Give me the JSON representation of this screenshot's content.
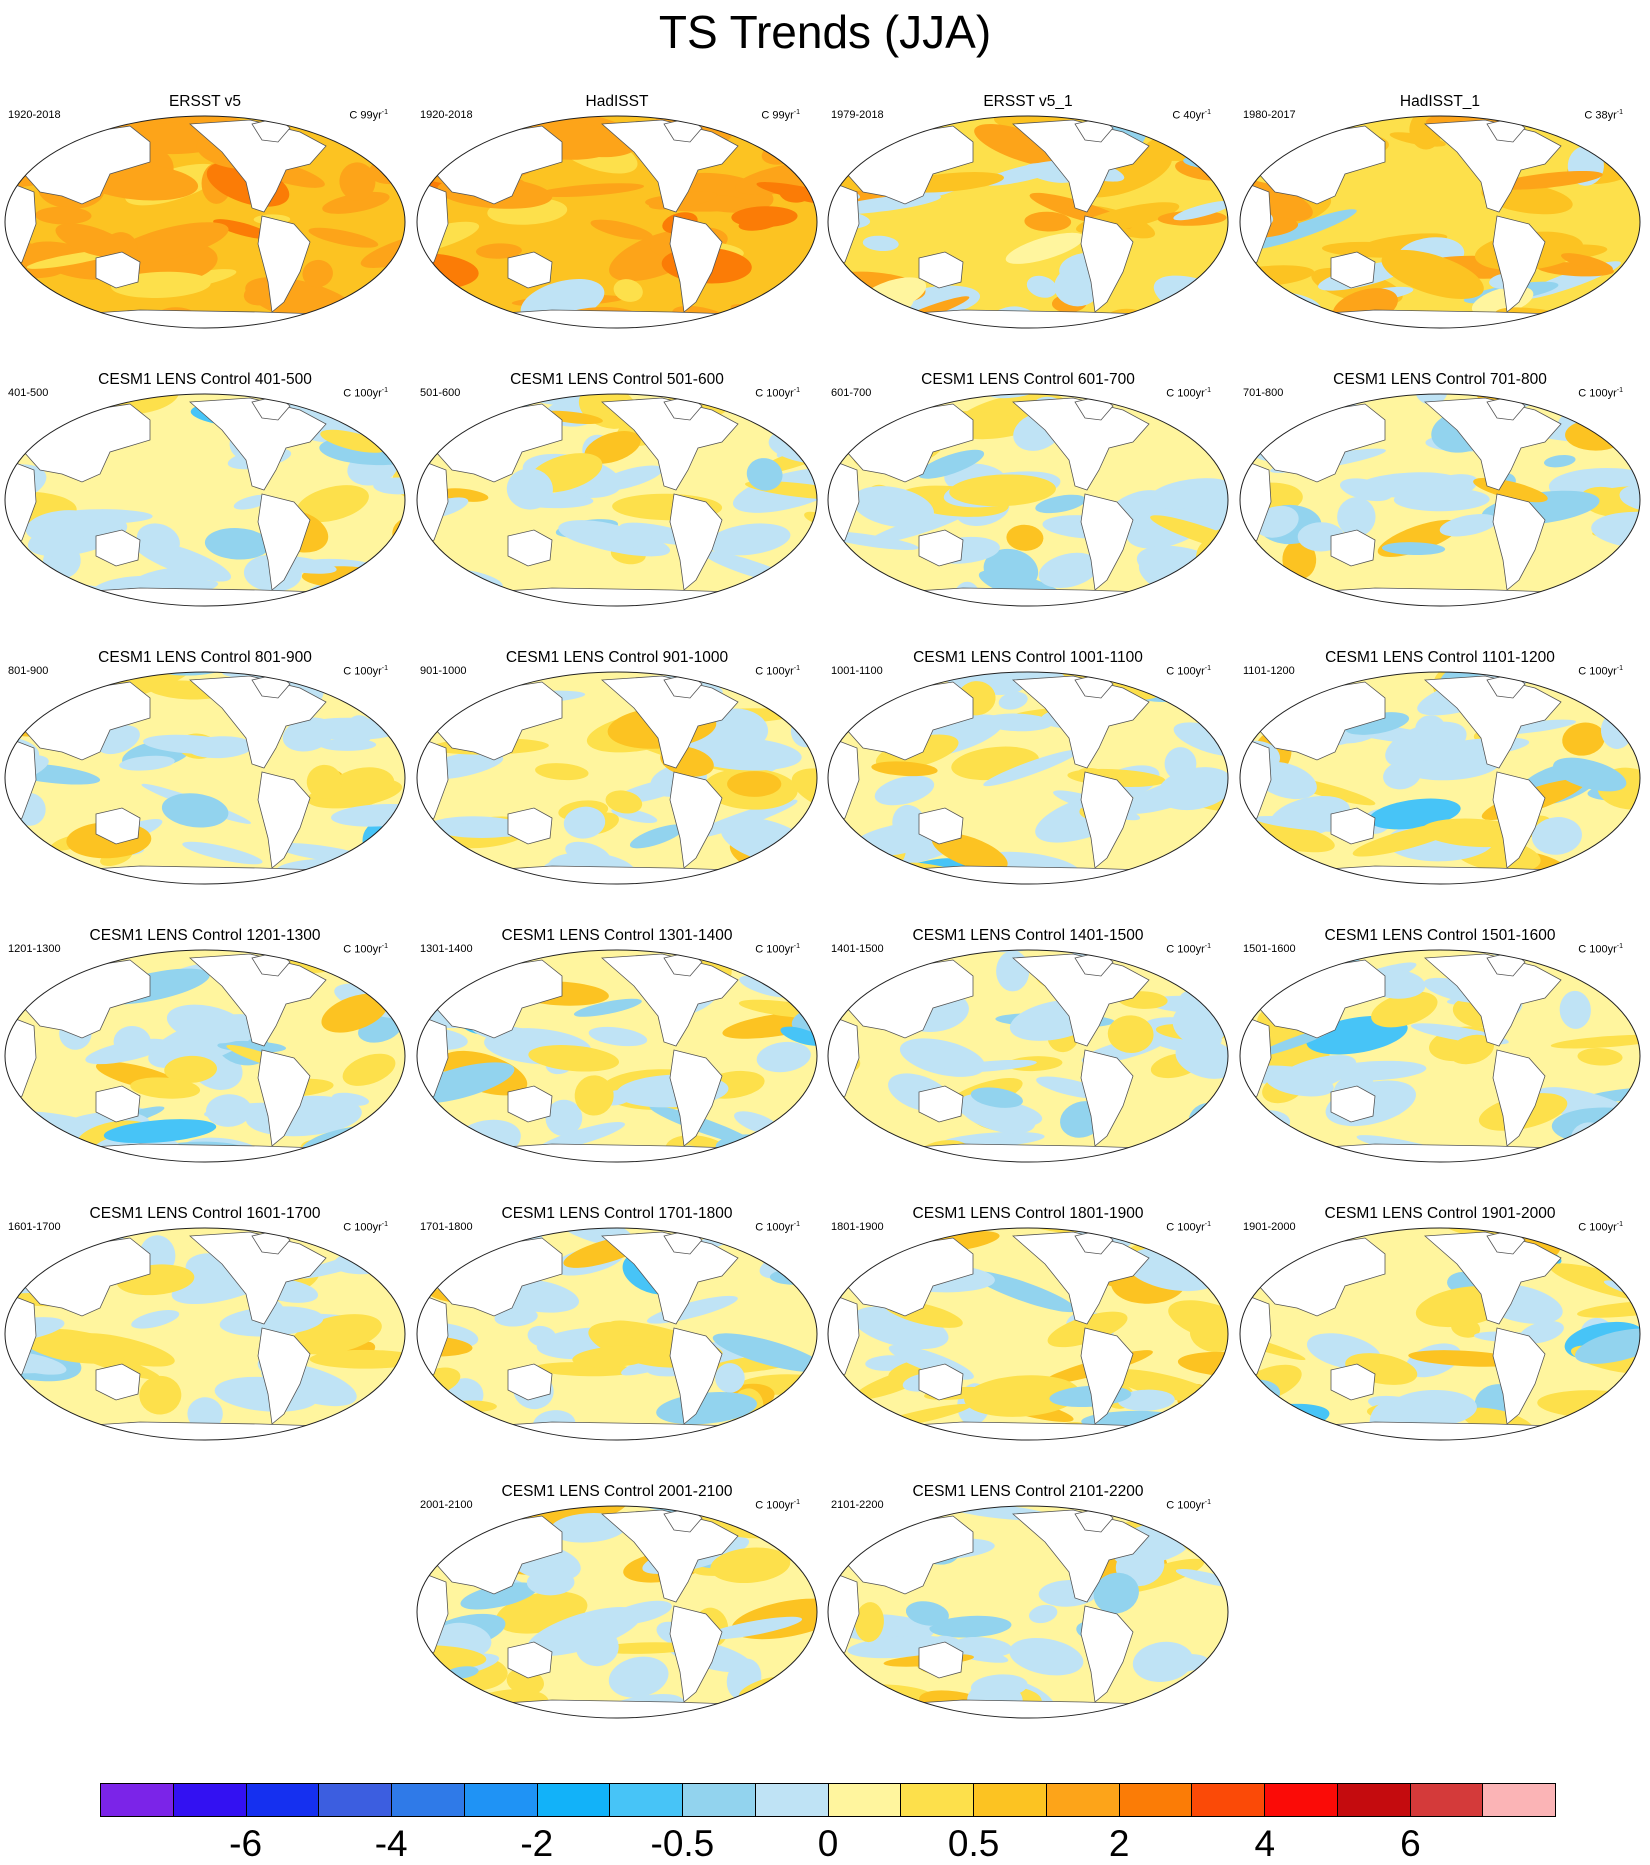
{
  "title": "TS Trends (JJA)",
  "panels": [
    {
      "title": "ERSST v5",
      "left": "1920-2018",
      "units": "C 99yr",
      "style": "obs"
    },
    {
      "title": "HadISST",
      "left": "1920-2018",
      "units": "C 99yr",
      "style": "obs2"
    },
    {
      "title": "ERSST v5_1",
      "left": "1979-2018",
      "units": "C 40yr",
      "style": "obs3"
    },
    {
      "title": "HadISST_1",
      "left": "1980-2017",
      "units": "C 38yr",
      "style": "obs3"
    },
    {
      "title": "CESM1 LENS Control 401-500",
      "left": "401-500",
      "units": "C 100yr",
      "style": "ctl"
    },
    {
      "title": "CESM1 LENS Control 501-600",
      "left": "501-600",
      "units": "C 100yr",
      "style": "ctl"
    },
    {
      "title": "CESM1 LENS Control 601-700",
      "left": "601-700",
      "units": "C 100yr",
      "style": "ctl"
    },
    {
      "title": "CESM1 LENS Control 701-800",
      "left": "701-800",
      "units": "C 100yr",
      "style": "ctl"
    },
    {
      "title": "CESM1 LENS Control 801-900",
      "left": "801-900",
      "units": "C 100yr",
      "style": "ctl"
    },
    {
      "title": "CESM1 LENS Control 901-1000",
      "left": "901-1000",
      "units": "C 100yr",
      "style": "ctl"
    },
    {
      "title": "CESM1 LENS Control 1001-1100",
      "left": "1001-1100",
      "units": "C 100yr",
      "style": "ctl"
    },
    {
      "title": "CESM1 LENS Control 1101-1200",
      "left": "1101-1200",
      "units": "C 100yr",
      "style": "ctl"
    },
    {
      "title": "CESM1 LENS Control 1201-1300",
      "left": "1201-1300",
      "units": "C 100yr",
      "style": "ctl"
    },
    {
      "title": "CESM1 LENS Control 1301-1400",
      "left": "1301-1400",
      "units": "C 100yr",
      "style": "ctl"
    },
    {
      "title": "CESM1 LENS Control 1401-1500",
      "left": "1401-1500",
      "units": "C 100yr",
      "style": "ctl"
    },
    {
      "title": "CESM1 LENS Control 1501-1600",
      "left": "1501-1600",
      "units": "C 100yr",
      "style": "ctl"
    },
    {
      "title": "CESM1 LENS Control 1601-1700",
      "left": "1601-1700",
      "units": "C 100yr",
      "style": "ctl"
    },
    {
      "title": "CESM1 LENS Control 1701-1800",
      "left": "1701-1800",
      "units": "C 100yr",
      "style": "ctl"
    },
    {
      "title": "CESM1 LENS Control 1801-1900",
      "left": "1801-1900",
      "units": "C 100yr",
      "style": "ctl"
    },
    {
      "title": "CESM1 LENS Control 1901-2000",
      "left": "1901-2000",
      "units": "C 100yr",
      "style": "ctl"
    },
    {
      "title": "CESM1 LENS Control 2001-2100",
      "left": "2001-2100",
      "units": "C 100yr",
      "style": "ctl"
    },
    {
      "title": "CESM1 LENS Control 2101-2200",
      "left": "2101-2200",
      "units": "C 100yr",
      "style": "ctl"
    }
  ],
  "units_exponent": "-1",
  "colorbar": {
    "colors": [
      "#7b24e8",
      "#3311f2",
      "#1530f0",
      "#3c5ee0",
      "#2f7ae8",
      "#1f93f5",
      "#12b2f9",
      "#47c4f7",
      "#92d3ee",
      "#bfe3f5",
      "#fff59e",
      "#fde04b",
      "#fcc322",
      "#fda419",
      "#fb7c06",
      "#fb4a07",
      "#fb0b07",
      "#c40b0e",
      "#d43a3a",
      "#fbb4b6"
    ],
    "labels": [
      "-6",
      "-4",
      "-2",
      "-0.5",
      "0",
      "0.5",
      "2",
      "4",
      "6"
    ]
  }
}
